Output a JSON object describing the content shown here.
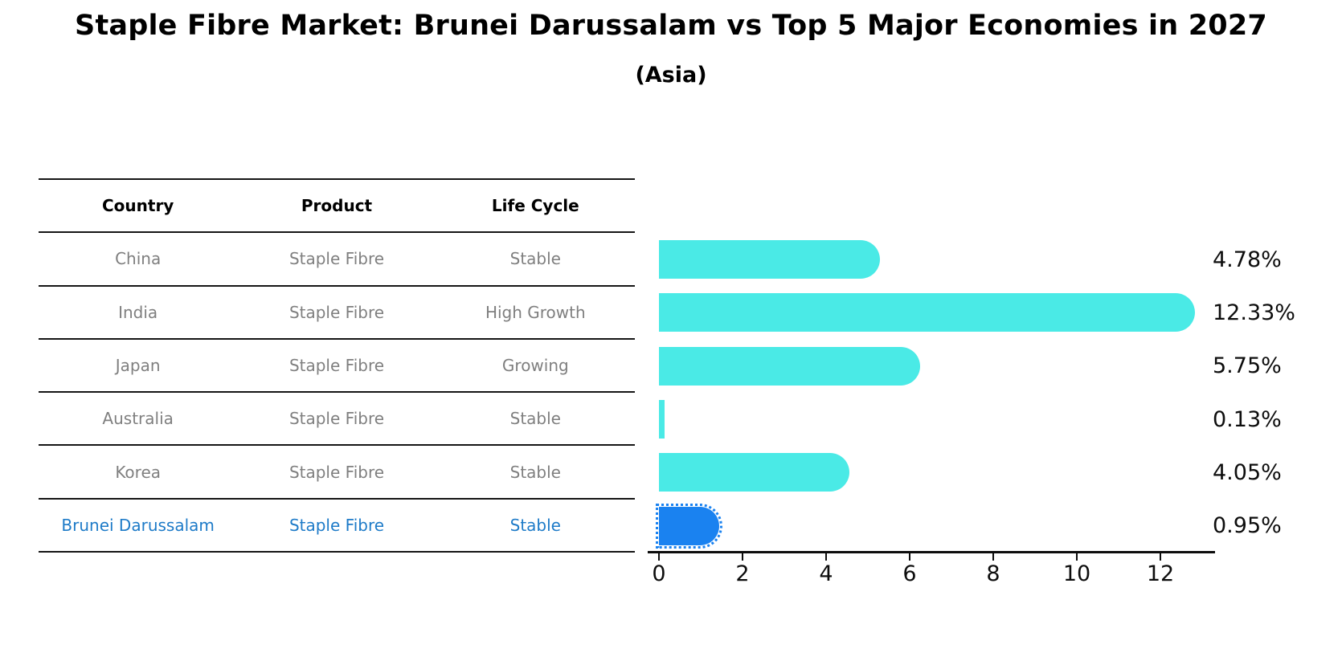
{
  "table": {
    "headers": [
      "Country",
      "Product",
      "Life Cycle"
    ],
    "rows": [
      {
        "country": "China",
        "product": "Staple Fibre",
        "life_cycle": "Stable",
        "highlight": false
      },
      {
        "country": "India",
        "product": "Staple Fibre",
        "life_cycle": "High Growth",
        "highlight": false
      },
      {
        "country": "Japan",
        "product": "Staple Fibre",
        "life_cycle": "Growing",
        "highlight": false
      },
      {
        "country": "Australia",
        "product": "Staple Fibre",
        "life_cycle": "Stable",
        "highlight": false
      },
      {
        "country": "Korea",
        "product": "Staple Fibre",
        "life_cycle": "Stable",
        "highlight": false
      },
      {
        "country": "Brunei Darussalam",
        "product": "Staple Fibre",
        "life_cycle": "Stable",
        "highlight": true
      }
    ]
  },
  "chart_data": {
    "type": "bar",
    "orientation": "horizontal",
    "title": "Staple Fibre Market: Brunei Darussalam vs Top 5 Major Economies in 2027",
    "subtitle": "(Asia)",
    "categories": [
      "China",
      "India",
      "Japan",
      "Australia",
      "Korea",
      "Brunei Darussalam"
    ],
    "values": [
      4.78,
      12.33,
      5.75,
      0.13,
      4.05,
      0.95
    ],
    "value_labels": [
      "4.78%",
      "12.33%",
      "5.75%",
      "0.13%",
      "4.05%",
      "0.95%"
    ],
    "xlabel": "",
    "ylabel": "",
    "xlim": [
      0,
      13.3
    ],
    "xticks": [
      0,
      2,
      4,
      6,
      8,
      10,
      12
    ],
    "xtick_labels": [
      "0",
      "2",
      "4",
      "6",
      "8",
      "10",
      "12"
    ],
    "grid": false,
    "legend": "none",
    "highlight_category": "Brunei Darussalam",
    "colors": {
      "bar_default": "#4aeae6",
      "bar_highlight": "#1a82f0",
      "highlight_text": "#1e7bc8",
      "row_text": "#7f7f7f",
      "header_text": "#000000",
      "axis": "#0d0d0d"
    }
  }
}
